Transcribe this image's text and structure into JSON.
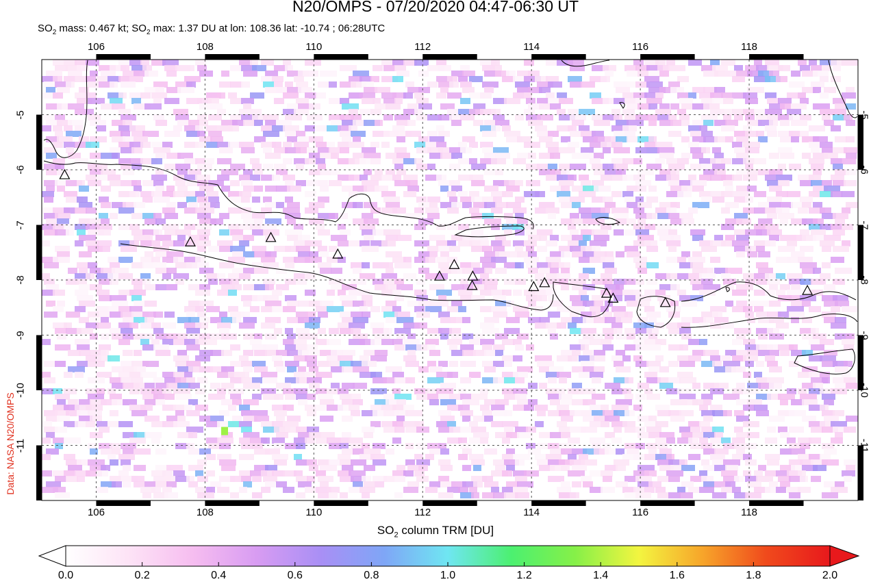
{
  "header": {
    "title": "N20/OMPS - 07/20/2020 04:47-06:30 UT",
    "subtitle_html_parts": {
      "p1": "SO",
      "s1": "2",
      "p2": " mass: 0.467 kt; SO",
      "s2": "2",
      "p3": " max: 1.37 DU at lon: 108.36 lat: -10.74 ; 06:28UTC"
    }
  },
  "credit": "Data: NASA N20/OMPS",
  "map": {
    "lon_range": [
      105,
      120
    ],
    "lat_range": [
      -12,
      -4
    ],
    "lon_ticks": [
      "106",
      "108",
      "110",
      "112",
      "114",
      "116",
      "118"
    ],
    "lat_ticks": [
      "-5",
      "-6",
      "-7",
      "-8",
      "-9",
      "-10",
      "-11"
    ],
    "volcanoes": [
      {
        "lon": 105.42,
        "lat": -6.1
      },
      {
        "lon": 107.73,
        "lat": -7.32
      },
      {
        "lon": 109.21,
        "lat": -7.24
      },
      {
        "lon": 110.44,
        "lat": -7.54
      },
      {
        "lon": 112.31,
        "lat": -7.94
      },
      {
        "lon": 112.58,
        "lat": -7.73
      },
      {
        "lon": 112.92,
        "lat": -7.94
      },
      {
        "lon": 112.91,
        "lat": -8.11
      },
      {
        "lon": 114.04,
        "lat": -8.13
      },
      {
        "lon": 114.24,
        "lat": -8.06
      },
      {
        "lon": 115.38,
        "lat": -8.25
      },
      {
        "lon": 115.5,
        "lat": -8.34
      },
      {
        "lon": 116.46,
        "lat": -8.42
      },
      {
        "lon": 119.07,
        "lat": -8.2
      }
    ],
    "max_pixel": {
      "lon": 108.36,
      "lat": -10.74,
      "value": 1.37
    }
  },
  "colorbar": {
    "label_parts": {
      "p1": "SO",
      "s1": "2",
      "p2": " column TRM [DU]"
    },
    "ticks": [
      "0.0",
      "0.2",
      "0.4",
      "0.6",
      "0.8",
      "1.0",
      "1.2",
      "1.4",
      "1.6",
      "1.8",
      "2.0"
    ],
    "colors": [
      "#ffffff",
      "#fde3f6",
      "#f6bdf0",
      "#d89cf2",
      "#a98ff5",
      "#7fa6f6",
      "#6fe6f2",
      "#4cf070",
      "#86f048",
      "#f3f540",
      "#f7a52a",
      "#f04a1c",
      "#e8191c"
    ]
  }
}
